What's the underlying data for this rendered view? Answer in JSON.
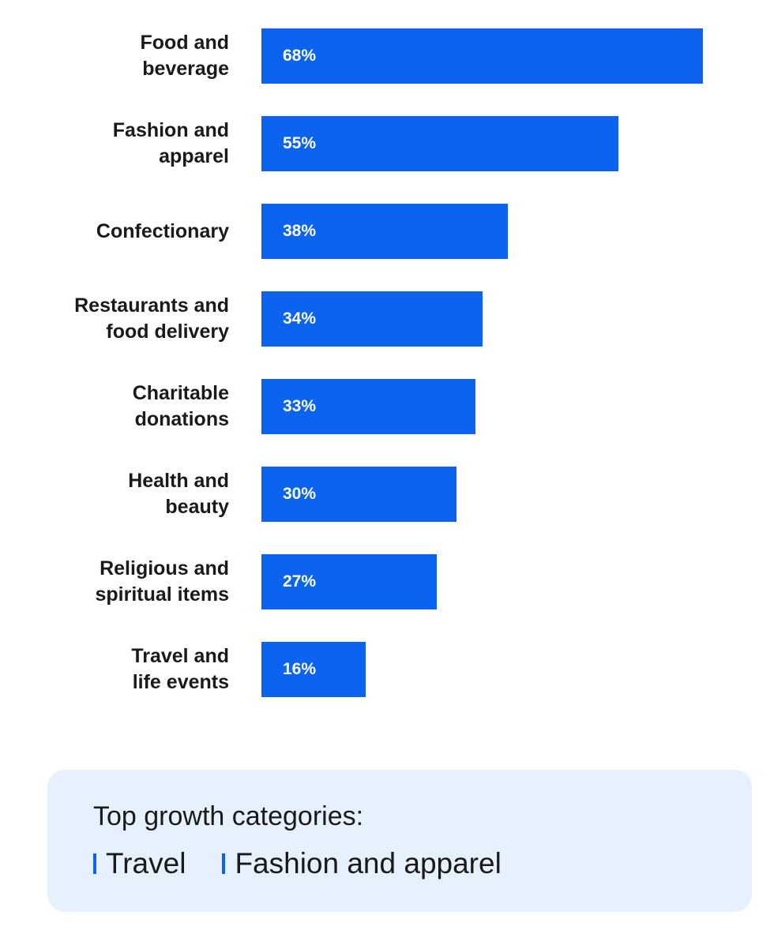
{
  "chart_data": {
    "type": "bar",
    "orientation": "horizontal",
    "categories": [
      "Food and\nbeverage",
      "Fashion and\napparel",
      "Confectionary",
      "Restaurants and\nfood delivery",
      "Charitable\ndonations",
      "Health and\nbeauty",
      "Religious and\nspiritual items",
      "Travel and\nlife events"
    ],
    "values": [
      68,
      55,
      38,
      34,
      33,
      30,
      27,
      16
    ],
    "value_labels": [
      "68%",
      "55%",
      "38%",
      "34%",
      "33%",
      "30%",
      "27%",
      "16%"
    ],
    "unit": "%",
    "bar_color": "#0b63f0",
    "grid": false
  },
  "growth": {
    "title": "Top growth categories:",
    "items": [
      "Travel",
      "Fashion and apparel"
    ],
    "accent_color": "#0b63f0"
  }
}
